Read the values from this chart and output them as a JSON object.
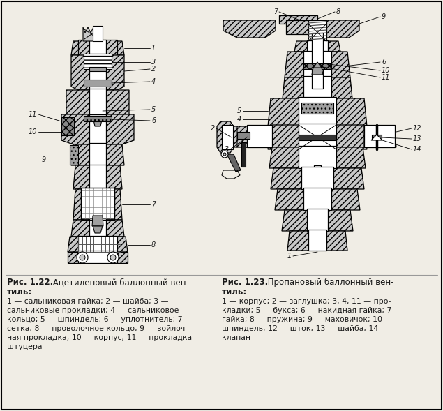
{
  "bg_color": "#f0ede5",
  "text_color": "#1a1a1a",
  "metal_light": "#e8e8e8",
  "metal_mid": "#c8c8c8",
  "metal_dark": "#a0a0a0",
  "hatch_fill": "#d0d0d0",
  "title1_bold": "Рис. 1.22.",
  "title1_norm": " Ацетиленовый баллонный вен-",
  "title1_norm2": "тиль:",
  "desc1": [
    "1 — сальниковая гайка; 2 — шайба; 3 —",
    "сальниковые прокладки; 4 — сальниковое",
    "кольцо; 5 — шпиндель; 6 — уплотнитель; 7 —",
    "сетка; 8 — проволочное кольцо; 9 — войлоч-",
    "ная прокладка; 10 — корпус; 11 — прокладка",
    "штуцера"
  ],
  "title2_bold": "Рис. 1.23.",
  "title2_norm": " Пропановый баллонный вен-",
  "title2_norm2": "тиль:",
  "desc2": [
    "1 — корпус; 2 — заглушка; 3, 4, 11 — про-",
    "кладки; 5 — букса; 6 — накидная гайка; 7 —",
    "гайка; 8 — пружина; 9 — маховичок; 10 —",
    "шпиндель; 12 — шток; 13 — шайба; 14 —",
    "клапан"
  ],
  "fig_w": 6.35,
  "fig_h": 5.89,
  "dpi": 100
}
